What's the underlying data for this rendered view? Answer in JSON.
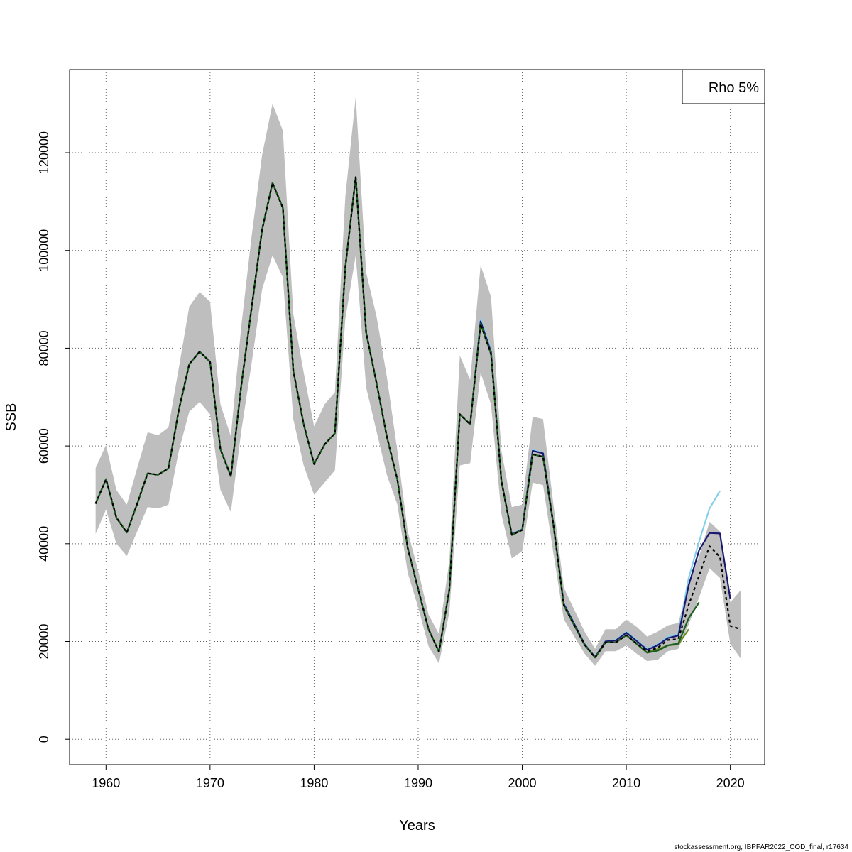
{
  "chart_data": {
    "type": "line",
    "xlabel": "Years",
    "ylabel": "SSB",
    "xlim": [
      1956.5,
      2023.3
    ],
    "ylim": [
      -5200,
      137000
    ],
    "xticks": [
      1960,
      1970,
      1980,
      1990,
      2000,
      2010,
      2020
    ],
    "yticks": [
      0,
      20000,
      40000,
      60000,
      80000,
      100000,
      120000
    ],
    "xtick_labels": [
      "1960",
      "1970",
      "1980",
      "1990",
      "2000",
      "2010",
      "2020"
    ],
    "ytick_labels": [
      "0",
      "20000",
      "40000",
      "60000",
      "80000",
      "100000",
      "120000"
    ],
    "grid": true,
    "legend": {
      "placement": "top-right",
      "text": "Rho 5%"
    },
    "band": {
      "color": "#bebebe",
      "x": [
        1959,
        1960,
        1961,
        1962,
        1963,
        1964,
        1965,
        1966,
        1967,
        1968,
        1969,
        1970,
        1971,
        1972,
        1973,
        1974,
        1975,
        1976,
        1977,
        1978,
        1979,
        1980,
        1981,
        1982,
        1983,
        1984,
        1985,
        1986,
        1987,
        1988,
        1989,
        1990,
        1991,
        1992,
        1993,
        1994,
        1995,
        1996,
        1997,
        1998,
        1999,
        2000,
        2001,
        2002,
        2003,
        2004,
        2005,
        2006,
        2007,
        2008,
        2009,
        2010,
        2011,
        2012,
        2013,
        2014,
        2015,
        2016,
        2017,
        2018,
        2019,
        2020,
        2021
      ],
      "lower": [
        42000,
        47000,
        40000,
        37500,
        42500,
        47500,
        47200,
        48000,
        59000,
        67000,
        69000,
        66500,
        51000,
        46500,
        63000,
        77000,
        92000,
        99000,
        94500,
        65500,
        56000,
        50000,
        52500,
        55000,
        86000,
        99000,
        72000,
        63000,
        54000,
        48000,
        34000,
        27000,
        19000,
        15500,
        26000,
        56000,
        56500,
        75000,
        68500,
        46000,
        37000,
        38500,
        52500,
        52000,
        38000,
        24500,
        21000,
        17500,
        15000,
        18000,
        18000,
        19200,
        17500,
        16000,
        16200,
        18000,
        18500,
        23500,
        29000,
        35000,
        33000,
        19500,
        16500
      ],
      "upper": [
        55500,
        60200,
        51000,
        48000,
        55500,
        62800,
        62200,
        63800,
        76000,
        88500,
        91500,
        89500,
        68500,
        62000,
        84500,
        103000,
        119500,
        130000,
        124500,
        87000,
        75000,
        64000,
        68500,
        71000,
        111000,
        131500,
        95500,
        86500,
        74000,
        59000,
        42500,
        34500,
        25500,
        21500,
        36500,
        78500,
        73500,
        97000,
        90500,
        59000,
        47500,
        48000,
        66000,
        65500,
        48000,
        31000,
        26500,
        22000,
        18500,
        22500,
        22500,
        24500,
        23000,
        21000,
        22000,
        23300,
        23800,
        31500,
        37500,
        44500,
        42500,
        28000,
        30500
      ]
    },
    "series": [
      {
        "color": "#87ceeb",
        "x": [
          1959,
          1960,
          1961,
          1962,
          1963,
          1964,
          1965,
          1966,
          1967,
          1968,
          1969,
          1970,
          1971,
          1972,
          1973,
          1974,
          1975,
          1976,
          1977,
          1978,
          1979,
          1980,
          1981,
          1982,
          1983,
          1984,
          1985,
          1986,
          1987,
          1988,
          1989,
          1990,
          1991,
          1992,
          1993,
          1994,
          1995,
          1996,
          1997,
          1998,
          1999,
          2000,
          2001,
          2002,
          2003,
          2004,
          2005,
          2006,
          2007,
          2008,
          2009,
          2010,
          2011,
          2012,
          2013,
          2014,
          2015,
          2016,
          2017,
          2018,
          2019
        ],
        "y": [
          48200,
          53200,
          45300,
          42300,
          48200,
          54400,
          54100,
          55400,
          67400,
          76700,
          79300,
          77200,
          59300,
          53800,
          72300,
          88400,
          104200,
          113800,
          108700,
          75400,
          64400,
          56300,
          60300,
          62600,
          96600,
          115000,
          83200,
          72900,
          61800,
          53100,
          39100,
          30700,
          22500,
          17900,
          30600,
          66500,
          64400,
          86000,
          79500,
          53000,
          42000,
          43000,
          59200,
          58600,
          44000,
          27800,
          23700,
          19500,
          16800,
          20100,
          20300,
          22000,
          20300,
          18500,
          19400,
          21000,
          21500,
          33000,
          40500,
          47200,
          50800
        ]
      },
      {
        "color": "#191970",
        "x": [
          1959,
          1960,
          1961,
          1962,
          1963,
          1964,
          1965,
          1966,
          1967,
          1968,
          1969,
          1970,
          1971,
          1972,
          1973,
          1974,
          1975,
          1976,
          1977,
          1978,
          1979,
          1980,
          1981,
          1982,
          1983,
          1984,
          1985,
          1986,
          1987,
          1988,
          1989,
          1990,
          1991,
          1992,
          1993,
          1994,
          1995,
          1996,
          1997,
          1998,
          1999,
          2000,
          2001,
          2002,
          2003,
          2004,
          2005,
          2006,
          2007,
          2008,
          2009,
          2010,
          2011,
          2012,
          2013,
          2014,
          2015,
          2016,
          2017,
          2018,
          2019,
          2020
        ],
        "y": [
          48200,
          53200,
          45300,
          42300,
          48200,
          54400,
          54100,
          55400,
          67400,
          76700,
          79300,
          77200,
          59300,
          53800,
          72300,
          88400,
          104200,
          113800,
          108700,
          75400,
          64400,
          56300,
          60300,
          62600,
          96600,
          115000,
          83200,
          72900,
          61800,
          53100,
          39100,
          30700,
          22500,
          17900,
          30600,
          66500,
          64400,
          85500,
          79200,
          52900,
          41900,
          42900,
          59000,
          58500,
          44000,
          27700,
          23600,
          19400,
          16800,
          20000,
          20200,
          21800,
          20100,
          18300,
          19200,
          20700,
          21200,
          31500,
          38700,
          42200,
          42100,
          28700
        ]
      },
      {
        "color": "#6b8e23",
        "x": [
          1959,
          1960,
          1961,
          1962,
          1963,
          1964,
          1965,
          1966,
          1967,
          1968,
          1969,
          1970,
          1971,
          1972,
          1973,
          1974,
          1975,
          1976,
          1977,
          1978,
          1979,
          1980,
          1981,
          1982,
          1983,
          1984,
          1985,
          1986,
          1987,
          1988,
          1989,
          1990,
          1991,
          1992,
          1993,
          1994,
          1995,
          1996,
          1997,
          1998,
          1999,
          2000,
          2001,
          2002,
          2003,
          2004,
          2005,
          2006,
          2007,
          2008,
          2009,
          2010,
          2011,
          2012,
          2013,
          2014,
          2015,
          2016
        ],
        "y": [
          48200,
          53200,
          45300,
          42300,
          48200,
          54400,
          54100,
          55400,
          67400,
          76700,
          79300,
          77200,
          59300,
          53800,
          72300,
          88400,
          104200,
          113800,
          108700,
          75400,
          64400,
          56300,
          60300,
          62600,
          96600,
          115000,
          83200,
          72900,
          61800,
          53100,
          39100,
          30700,
          22500,
          17900,
          30600,
          66500,
          64400,
          85000,
          78800,
          52800,
          41800,
          42800,
          58300,
          57800,
          43800,
          27400,
          23300,
          19300,
          16700,
          19800,
          19800,
          21300,
          19500,
          17800,
          18400,
          19200,
          19400,
          22500
        ]
      },
      {
        "color": "#1b5e20",
        "x": [
          1959,
          1960,
          1961,
          1962,
          1963,
          1964,
          1965,
          1966,
          1967,
          1968,
          1969,
          1970,
          1971,
          1972,
          1973,
          1974,
          1975,
          1976,
          1977,
          1978,
          1979,
          1980,
          1981,
          1982,
          1983,
          1984,
          1985,
          1986,
          1987,
          1988,
          1989,
          1990,
          1991,
          1992,
          1993,
          1994,
          1995,
          1996,
          1997,
          1998,
          1999,
          2000,
          2001,
          2002,
          2003,
          2004,
          2005,
          2006,
          2007,
          2008,
          2009,
          2010,
          2011,
          2012,
          2013,
          2014,
          2015,
          2016,
          2017
        ],
        "y": [
          48200,
          53200,
          45300,
          42300,
          48200,
          54400,
          54100,
          55400,
          67400,
          76700,
          79300,
          77200,
          59300,
          53800,
          72300,
          88400,
          104200,
          113800,
          108700,
          75400,
          64400,
          56300,
          60300,
          62600,
          96600,
          115000,
          83200,
          72900,
          61800,
          53100,
          39100,
          30700,
          22500,
          17900,
          30600,
          66500,
          64400,
          85000,
          78800,
          52800,
          41800,
          42800,
          58300,
          57800,
          43800,
          27400,
          23300,
          19300,
          16700,
          19800,
          19800,
          21300,
          19500,
          17700,
          18100,
          19200,
          19600,
          24800,
          28000
        ]
      },
      {
        "color": "#000000",
        "dash": "4,4",
        "x": [
          1959,
          1960,
          1961,
          1962,
          1963,
          1964,
          1965,
          1966,
          1967,
          1968,
          1969,
          1970,
          1971,
          1972,
          1973,
          1974,
          1975,
          1976,
          1977,
          1978,
          1979,
          1980,
          1981,
          1982,
          1983,
          1984,
          1985,
          1986,
          1987,
          1988,
          1989,
          1990,
          1991,
          1992,
          1993,
          1994,
          1995,
          1996,
          1997,
          1998,
          1999,
          2000,
          2001,
          2002,
          2003,
          2004,
          2005,
          2006,
          2007,
          2008,
          2009,
          2010,
          2011,
          2012,
          2013,
          2014,
          2015,
          2016,
          2017,
          2018,
          2019,
          2020,
          2021
        ],
        "y": [
          48200,
          53200,
          45300,
          42300,
          48200,
          54400,
          54100,
          55400,
          67400,
          76700,
          79300,
          77200,
          59300,
          53800,
          72300,
          88400,
          104200,
          113800,
          108700,
          75400,
          64400,
          56300,
          60300,
          62600,
          96600,
          115000,
          83200,
          72900,
          61800,
          53100,
          39100,
          30700,
          22500,
          17900,
          30600,
          66500,
          64400,
          85000,
          78800,
          52800,
          41800,
          42800,
          58300,
          57800,
          43800,
          27400,
          23300,
          19300,
          16700,
          19800,
          19800,
          21300,
          19600,
          18000,
          18700,
          20300,
          20500,
          27500,
          33500,
          39500,
          37300,
          23200,
          22500
        ]
      }
    ]
  },
  "footer": "stockassessment.org, IBPFAR2022_COD_final, r17634"
}
